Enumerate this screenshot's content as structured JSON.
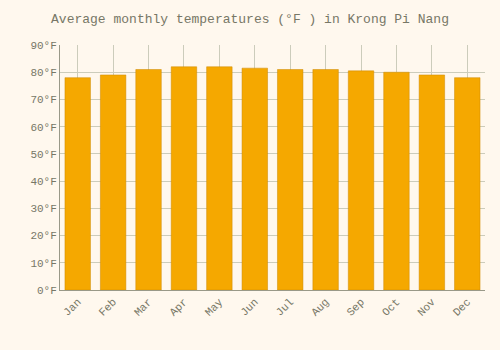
{
  "chart_data": {
    "type": "bar",
    "title": "Average monthly temperatures (°F ) in Krong Pi Nang",
    "categories": [
      "Jan",
      "Feb",
      "Mar",
      "Apr",
      "May",
      "Jun",
      "Jul",
      "Aug",
      "Sep",
      "Oct",
      "Nov",
      "Dec"
    ],
    "values": [
      78,
      79,
      81,
      82,
      82,
      81.5,
      81,
      81,
      80.5,
      80,
      79,
      78
    ],
    "color": "#F5A800",
    "ylim": [
      0,
      90
    ],
    "yticks": [
      {
        "value": 0,
        "label": "0°F"
      },
      {
        "value": 10,
        "label": "10°F"
      },
      {
        "value": 20,
        "label": "20°F"
      },
      {
        "value": 30,
        "label": "30°F"
      },
      {
        "value": 40,
        "label": "40°F"
      },
      {
        "value": 50,
        "label": "50°F"
      },
      {
        "value": 60,
        "label": "60°F"
      },
      {
        "value": 70,
        "label": "70°F"
      },
      {
        "value": 80,
        "label": "80°F"
      },
      {
        "value": 90,
        "label": "90°F"
      }
    ],
    "grid": true
  }
}
